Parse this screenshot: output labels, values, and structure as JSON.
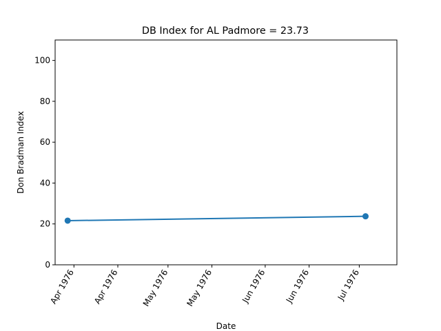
{
  "chart_data": {
    "type": "line",
    "title": "DB Index for AL Padmore = 23.73",
    "xlabel": "Date",
    "ylabel": "Don Bradman Index",
    "ylim": [
      0,
      110
    ],
    "xlim": [
      "1976-03-26",
      "1976-07-13"
    ],
    "y_ticks": [
      0,
      20,
      40,
      60,
      80,
      100
    ],
    "x_ticks": [
      {
        "date": "1976-04-01",
        "label": "Apr 1976"
      },
      {
        "date": "1976-04-15",
        "label": "Apr 1976"
      },
      {
        "date": "1976-05-01",
        "label": "May 1976"
      },
      {
        "date": "1976-05-15",
        "label": "May 1976"
      },
      {
        "date": "1976-06-01",
        "label": "Jun 1976"
      },
      {
        "date": "1976-06-15",
        "label": "Jun 1976"
      },
      {
        "date": "1976-07-01",
        "label": "Jul 1976"
      }
    ],
    "series": [
      {
        "color": "#1f77b4",
        "points": [
          {
            "x": "1976-03-30",
            "y": 21.6
          },
          {
            "x": "1976-07-03",
            "y": 23.73
          }
        ]
      }
    ],
    "grid": false,
    "legend": "none"
  }
}
